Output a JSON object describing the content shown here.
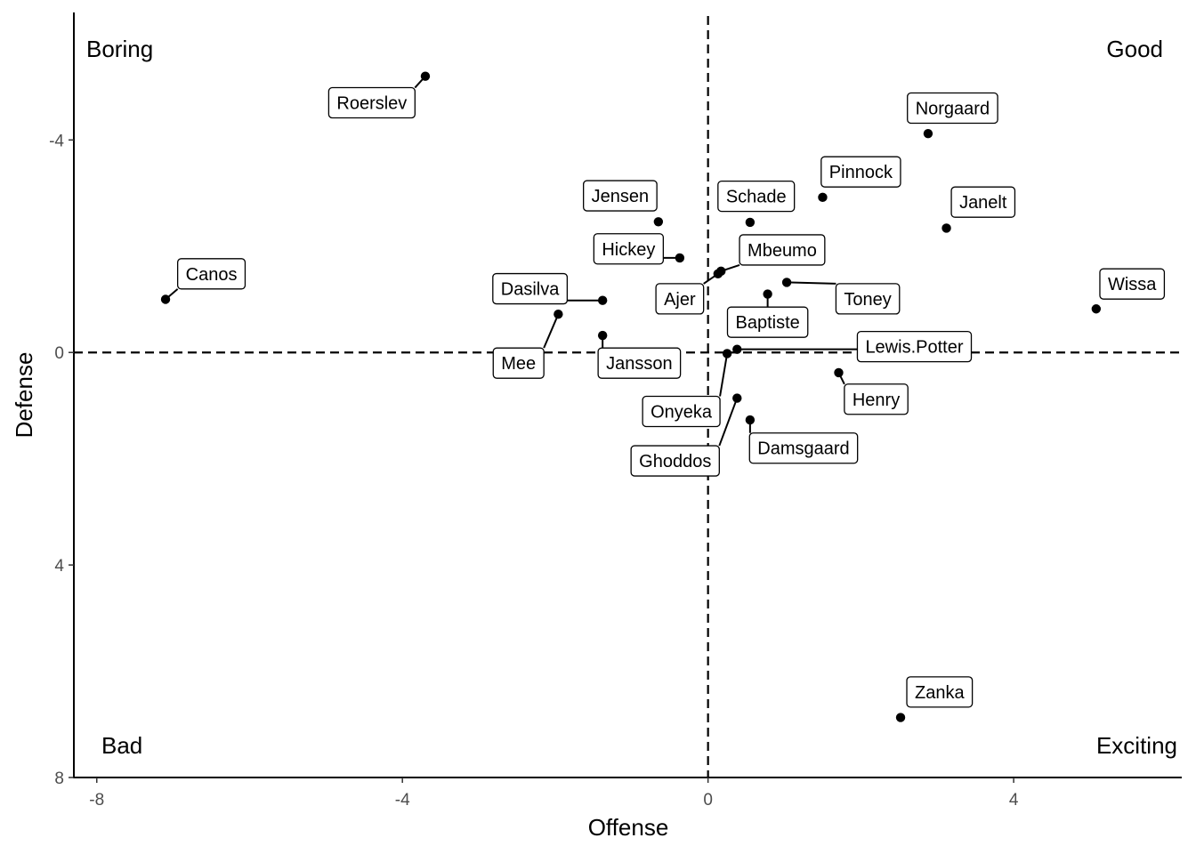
{
  "chart_data": {
    "type": "scatter",
    "title": "",
    "xlabel": "Offense",
    "ylabel": "Defense",
    "xlim": [
      -8.3,
      6.2
    ],
    "ylim": [
      -6.4,
      8.0
    ],
    "y_reversed": true,
    "xticks": [
      -8,
      -4,
      0,
      4
    ],
    "xtick_labels": [
      "-8",
      "-4",
      "0",
      "4"
    ],
    "yticks": [
      -4,
      0,
      4,
      8
    ],
    "ytick_labels": [
      "-4",
      "0",
      "4",
      "8"
    ],
    "grid": false,
    "reference_lines": {
      "x": 0,
      "y": 0,
      "style": "dashed"
    },
    "quadrant_labels": {
      "top_left": "Boring",
      "top_right": "Good",
      "bottom_left": "Bad",
      "bottom_right": "Exciting"
    },
    "points": [
      {
        "label": "Roerslev",
        "x": -3.7,
        "y": -5.2,
        "lx": -4.4,
        "ly": -4.7
      },
      {
        "label": "Norgaard",
        "x": 2.88,
        "y": -4.12,
        "lx": 3.2,
        "ly": -4.6
      },
      {
        "label": "Pinnock",
        "x": 1.5,
        "y": -2.92,
        "lx": 2.0,
        "ly": -3.4
      },
      {
        "label": "Jensen",
        "x": -0.65,
        "y": -2.46,
        "lx": -1.15,
        "ly": -2.95
      },
      {
        "label": "Schade",
        "x": 0.55,
        "y": -2.45,
        "lx": 0.63,
        "ly": -2.94
      },
      {
        "label": "Janelt",
        "x": 3.12,
        "y": -2.34,
        "lx": 3.6,
        "ly": -2.83
      },
      {
        "label": "Hickey",
        "x": -0.37,
        "y": -1.78,
        "lx": -1.04,
        "ly": -1.95
      },
      {
        "label": "Mbeumo",
        "x": 0.17,
        "y": -1.53,
        "lx": 0.97,
        "ly": -1.93
      },
      {
        "label": "Canos",
        "x": -7.1,
        "y": -1.0,
        "lx": -6.5,
        "ly": -1.48
      },
      {
        "label": "Dasilva",
        "x": -1.38,
        "y": -0.98,
        "lx": -2.33,
        "ly": -1.2
      },
      {
        "label": "Ajer",
        "x": 0.13,
        "y": -1.48,
        "lx": -0.37,
        "ly": -1.01
      },
      {
        "label": "Toney",
        "x": 1.03,
        "y": -1.32,
        "lx": 2.09,
        "ly": -1.01
      },
      {
        "label": "Wissa",
        "x": 5.08,
        "y": -0.82,
        "lx": 5.55,
        "ly": -1.29
      },
      {
        "label": "Mee",
        "x": -1.96,
        "y": -0.72,
        "lx": -2.48,
        "ly": 0.2
      },
      {
        "label": "Baptiste",
        "x": 0.78,
        "y": -1.1,
        "lx": 0.78,
        "ly": -0.57
      },
      {
        "label": "Jansson",
        "x": -1.38,
        "y": -0.32,
        "lx": -0.9,
        "ly": 0.2
      },
      {
        "label": "Lewis.Potter",
        "x": 0.38,
        "y": -0.06,
        "lx": 2.7,
        "ly": -0.11
      },
      {
        "label": "Onyeka",
        "x": 0.25,
        "y": 0.02,
        "lx": -0.35,
        "ly": 1.11
      },
      {
        "label": "Henry",
        "x": 1.71,
        "y": 0.38,
        "lx": 2.2,
        "ly": 0.88
      },
      {
        "label": "Ghoddos",
        "x": 0.38,
        "y": 0.86,
        "lx": -0.43,
        "ly": 2.04
      },
      {
        "label": "Damsgaard",
        "x": 0.55,
        "y": 1.27,
        "lx": 1.25,
        "ly": 1.8
      },
      {
        "label": "Zanka",
        "x": 2.52,
        "y": 6.87,
        "lx": 3.03,
        "ly": 6.39
      }
    ]
  }
}
